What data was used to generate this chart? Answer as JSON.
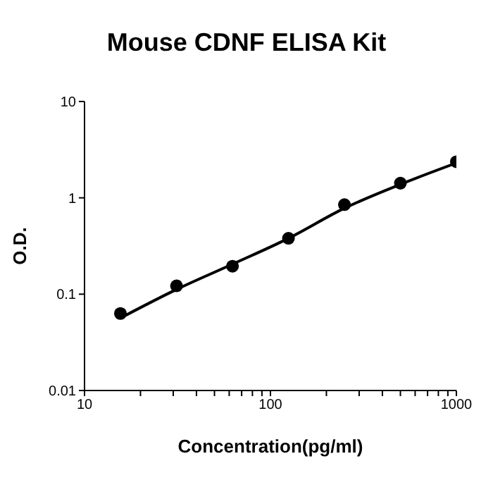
{
  "chart_data": {
    "type": "scatter",
    "title": "Mouse CDNF ELISA Kit",
    "xlabel": "Concentration(pg/ml)",
    "ylabel": "O.D.",
    "log": "xy",
    "grid": false,
    "marker": "circle",
    "x": [
      15.6,
      31.25,
      62.5,
      125,
      250,
      500,
      1000
    ],
    "series": [
      {
        "color": "#000000",
        "values": [
          0.063,
          0.122,
          0.195,
          0.38,
          0.85,
          1.42,
          2.37
        ]
      },
      {
        "type": "line",
        "color": "#000000",
        "marker": "none",
        "line_style": "solid",
        "x": [
          16,
          31.25,
          62.5,
          125,
          250,
          500,
          1000
        ],
        "values": [
          0.058,
          0.112,
          0.205,
          0.38,
          0.78,
          1.38,
          2.3
        ]
      }
    ],
    "xlim": [
      10,
      1000
    ],
    "ylim": [
      0.01,
      10
    ],
    "xticks": [
      10,
      {
        "value": 20,
        "label": null
      },
      {
        "value": 30,
        "label": null
      },
      {
        "value": 40,
        "label": null
      },
      {
        "value": 50,
        "label": null
      },
      {
        "value": 60,
        "label": null
      },
      {
        "value": 70,
        "label": null
      },
      {
        "value": 80,
        "label": null
      },
      {
        "value": 90,
        "label": null
      },
      100,
      {
        "value": 200,
        "label": null
      },
      {
        "value": 300,
        "label": null
      },
      {
        "value": 400,
        "label": null
      },
      {
        "value": 500,
        "label": null
      },
      {
        "value": 600,
        "label": null
      },
      {
        "value": 700,
        "label": null
      },
      {
        "value": 800,
        "label": null
      },
      {
        "value": 900,
        "label": null
      },
      1000
    ],
    "yticks": [
      0.01,
      0.1,
      1,
      10
    ]
  }
}
